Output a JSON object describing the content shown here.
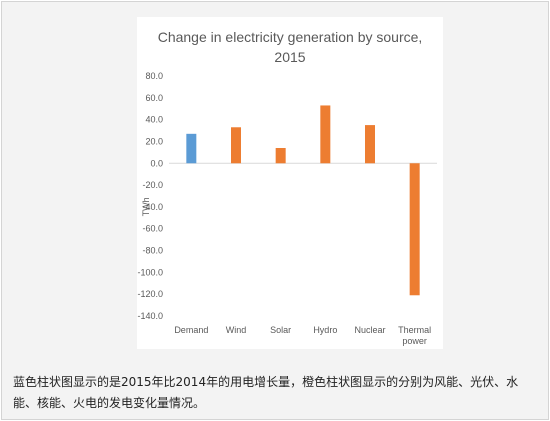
{
  "chart_data": {
    "type": "bar",
    "title_lines": [
      "Change in electricity generation by source,",
      "2015"
    ],
    "ylabel": "TWh",
    "xlabel": "",
    "ylim": [
      -140,
      80
    ],
    "ytick_step": 20,
    "ytick_labels": [
      "80.0",
      "60.0",
      "40.0",
      "20.0",
      "0.0",
      "-20.0",
      "-40.0",
      "-60.0",
      "-80.0",
      "-100.0",
      "-120.0",
      "-140.0"
    ],
    "categories": [
      {
        "label_lines": [
          "Demand"
        ]
      },
      {
        "label_lines": [
          "Wind"
        ]
      },
      {
        "label_lines": [
          "Solar"
        ]
      },
      {
        "label_lines": [
          "Hydro"
        ]
      },
      {
        "label_lines": [
          "Nuclear"
        ]
      },
      {
        "label_lines": [
          "Thermal",
          "power"
        ]
      }
    ],
    "values": [
      27,
      33,
      14,
      53,
      35,
      -121
    ],
    "bar_colors": [
      "#5B9BD5",
      "#ED7D31",
      "#ED7D31",
      "#ED7D31",
      "#ED7D31",
      "#ED7D31"
    ],
    "grid": false,
    "legend": "none"
  },
  "caption": "蓝色柱状图显示的是2015年比2014年的用电增长量，橙色柱状图显示的分别为风能、光伏、水能、核能、火电的发电变化量情况。"
}
